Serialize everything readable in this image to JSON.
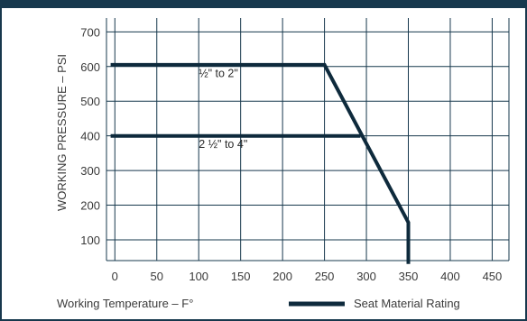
{
  "colors": {
    "frame": "#17384d",
    "grid": "#17384d",
    "series": "#0e2a3c",
    "text": "#3a3a3a"
  },
  "chart_data": {
    "type": "line",
    "title": "",
    "xlabel": "Working Temperature – F°",
    "ylabel": "WORKING PRESSURE – PSI",
    "xlim": [
      -10,
      470
    ],
    "ylim": [
      40,
      740
    ],
    "x_ticks": [
      0,
      50,
      100,
      150,
      200,
      250,
      300,
      350,
      400,
      450
    ],
    "y_ticks": [
      100,
      200,
      300,
      400,
      500,
      600,
      700
    ],
    "grid": true,
    "legend": {
      "position": "bottom-right",
      "entries": [
        "Seat Material Rating"
      ]
    },
    "series": [
      {
        "name": "½\" to 2\"",
        "points": [
          [
            -5,
            605
          ],
          [
            250,
            605
          ],
          [
            350,
            150
          ],
          [
            350,
            30
          ]
        ],
        "label": "½\" to 2\"",
        "label_at": [
          100,
          570
        ]
      },
      {
        "name": "2 ½\" to 4\"",
        "points": [
          [
            -5,
            400
          ],
          [
            293,
            400
          ]
        ],
        "label": "2 ½\" to 4\"",
        "label_at": [
          100,
          365
        ]
      }
    ]
  }
}
